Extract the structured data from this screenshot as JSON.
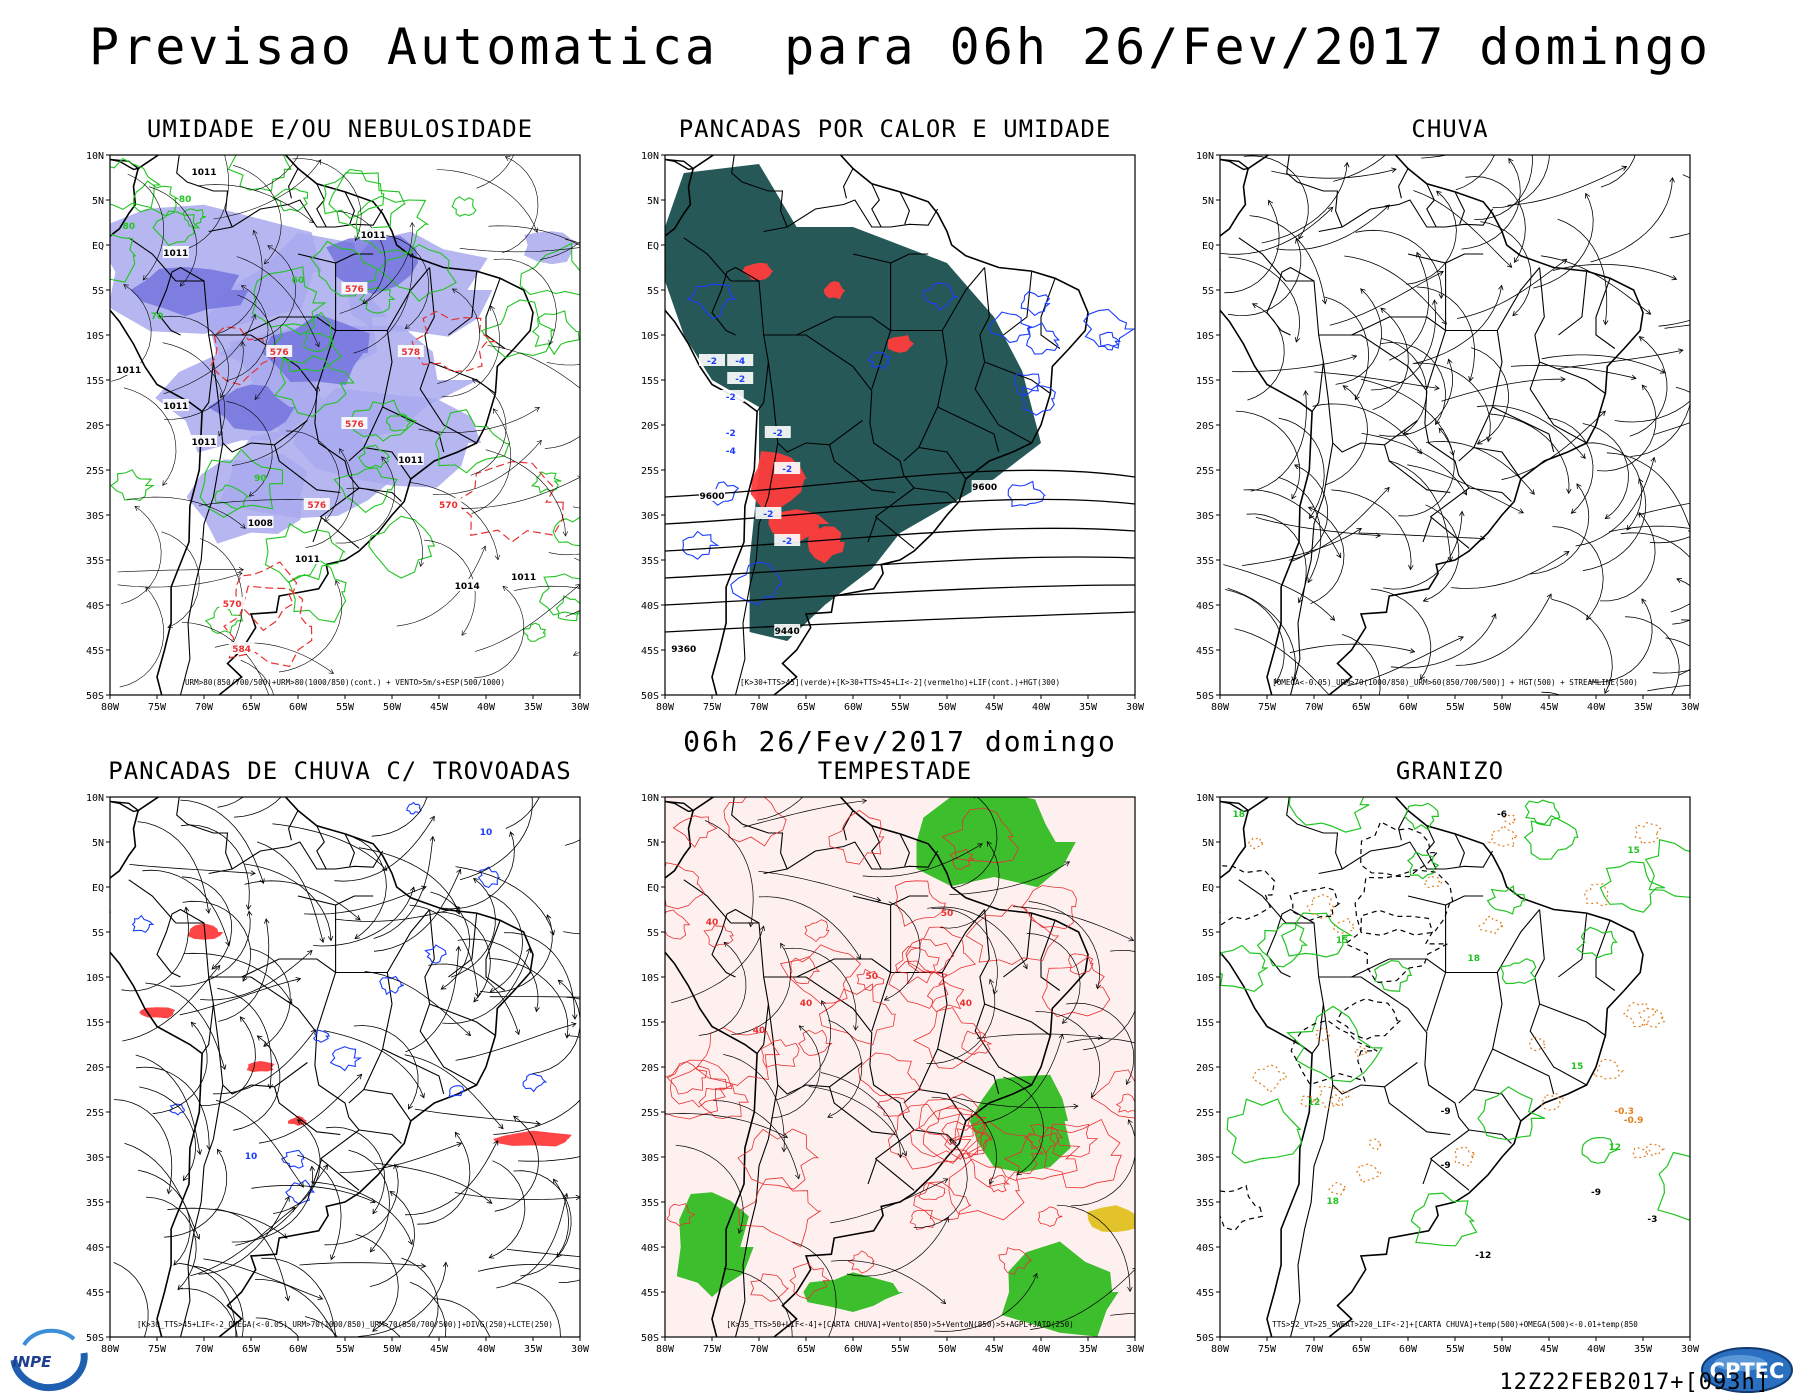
{
  "title": "Previsao Automatica  para 06h 26/Fev/2017 domingo",
  "subtitle": "06h 26/Fev/2017 domingo",
  "footer_stamp": "12Z22FEB2017+[093h]",
  "logos": {
    "left": "INPE",
    "right": "CPTEC"
  },
  "axes": {
    "lat_labels": [
      "10N",
      "5N",
      "EQ",
      "5S",
      "10S",
      "15S",
      "20S",
      "25S",
      "30S",
      "35S",
      "40S",
      "45S",
      "50S"
    ],
    "lon_labels": [
      "80W",
      "75W",
      "70W",
      "65W",
      "60W",
      "55W",
      "50W",
      "45W",
      "40W",
      "35W",
      "30W"
    ]
  },
  "colors": {
    "land_outline": "#000000",
    "humidity_fill": "#a9a9ee",
    "humidity_dense": "#7070dd",
    "green_contour": "#22c422",
    "dark_teal": "#1a4f4f",
    "red_fill": "#ff3c3c",
    "blue_contour": "#1a3cff",
    "storm_red": "#e83030",
    "storm_bg": "#fff0f0",
    "orange_dot": "#e08020",
    "yellow": "#e0c020"
  },
  "panels": [
    {
      "id": "umidade",
      "title": "UMIDADE E/OU NEBULOSIDADE",
      "legend": "URM>80(850/700/500)+URM>80(1000/850)(cont.) + VENTO>5m/s+ESP(500/1000)",
      "labels": [
        "1011",
        "1011",
        "1011",
        "1011",
        "1011",
        "1011",
        "1011",
        "1008",
        "1011",
        "1014",
        "1011",
        "576",
        "578",
        "576",
        "576",
        "576",
        "570",
        "570",
        "584",
        "80",
        "80",
        "70",
        "60",
        "90"
      ]
    },
    {
      "id": "pancadas-calor",
      "title": "PANCADAS POR CALOR E UMIDADE",
      "legend": "[K>30+TTS>45](verde)+[K>30+TTS>45+LI<-2](vermelho)+LIF(cont.)+HGT(300)",
      "labels": [
        "-2",
        "-4",
        "-2",
        "-2",
        "-2",
        "-4",
        "-2",
        "-2",
        "-2",
        "-2",
        "9600",
        "9600",
        "9440",
        "9360"
      ]
    },
    {
      "id": "chuva",
      "title": "CHUVA",
      "legend": "[OMEGA<-0.05)_URM>70(1000/850)_URM>60(850/700/500)] + HGT(500) + STREAMLINE(500)",
      "labels": []
    },
    {
      "id": "trovoadas",
      "title": "PANCADAS DE CHUVA C/ TROVOADAS",
      "legend": "[K>30_TTS>45+LIF<-2_OMEGA(<-0.05)_URM>70(1000/850)_URM>70(850/700/500)]+DIVG(250)+LCTE(250)",
      "labels": [
        "10",
        "10"
      ]
    },
    {
      "id": "tempestade",
      "title": "TEMPESTADE",
      "legend": "[K>35_TTS>50+LIF<-4]+[CARTA CHUVA]+Vento(850)>5+VentoN(850)>5+AGPL+JATO(250)",
      "labels": [
        "50",
        "40",
        "40",
        "50",
        "40",
        "40"
      ]
    },
    {
      "id": "granizo",
      "title": "GRANIZO",
      "legend": "TTS>52_VT>25_SWEAT>220_LIF<-2]+[CARTA CHUVA]+temp(500)+OMEGA(500)<-0.01+temp(850",
      "labels": [
        "15",
        "18",
        "18",
        "15",
        "12",
        "12",
        "18",
        "15",
        "-9",
        "-12",
        "-9",
        "-9",
        "-6",
        "-3",
        "-0.3",
        "-0.9"
      ]
    }
  ]
}
